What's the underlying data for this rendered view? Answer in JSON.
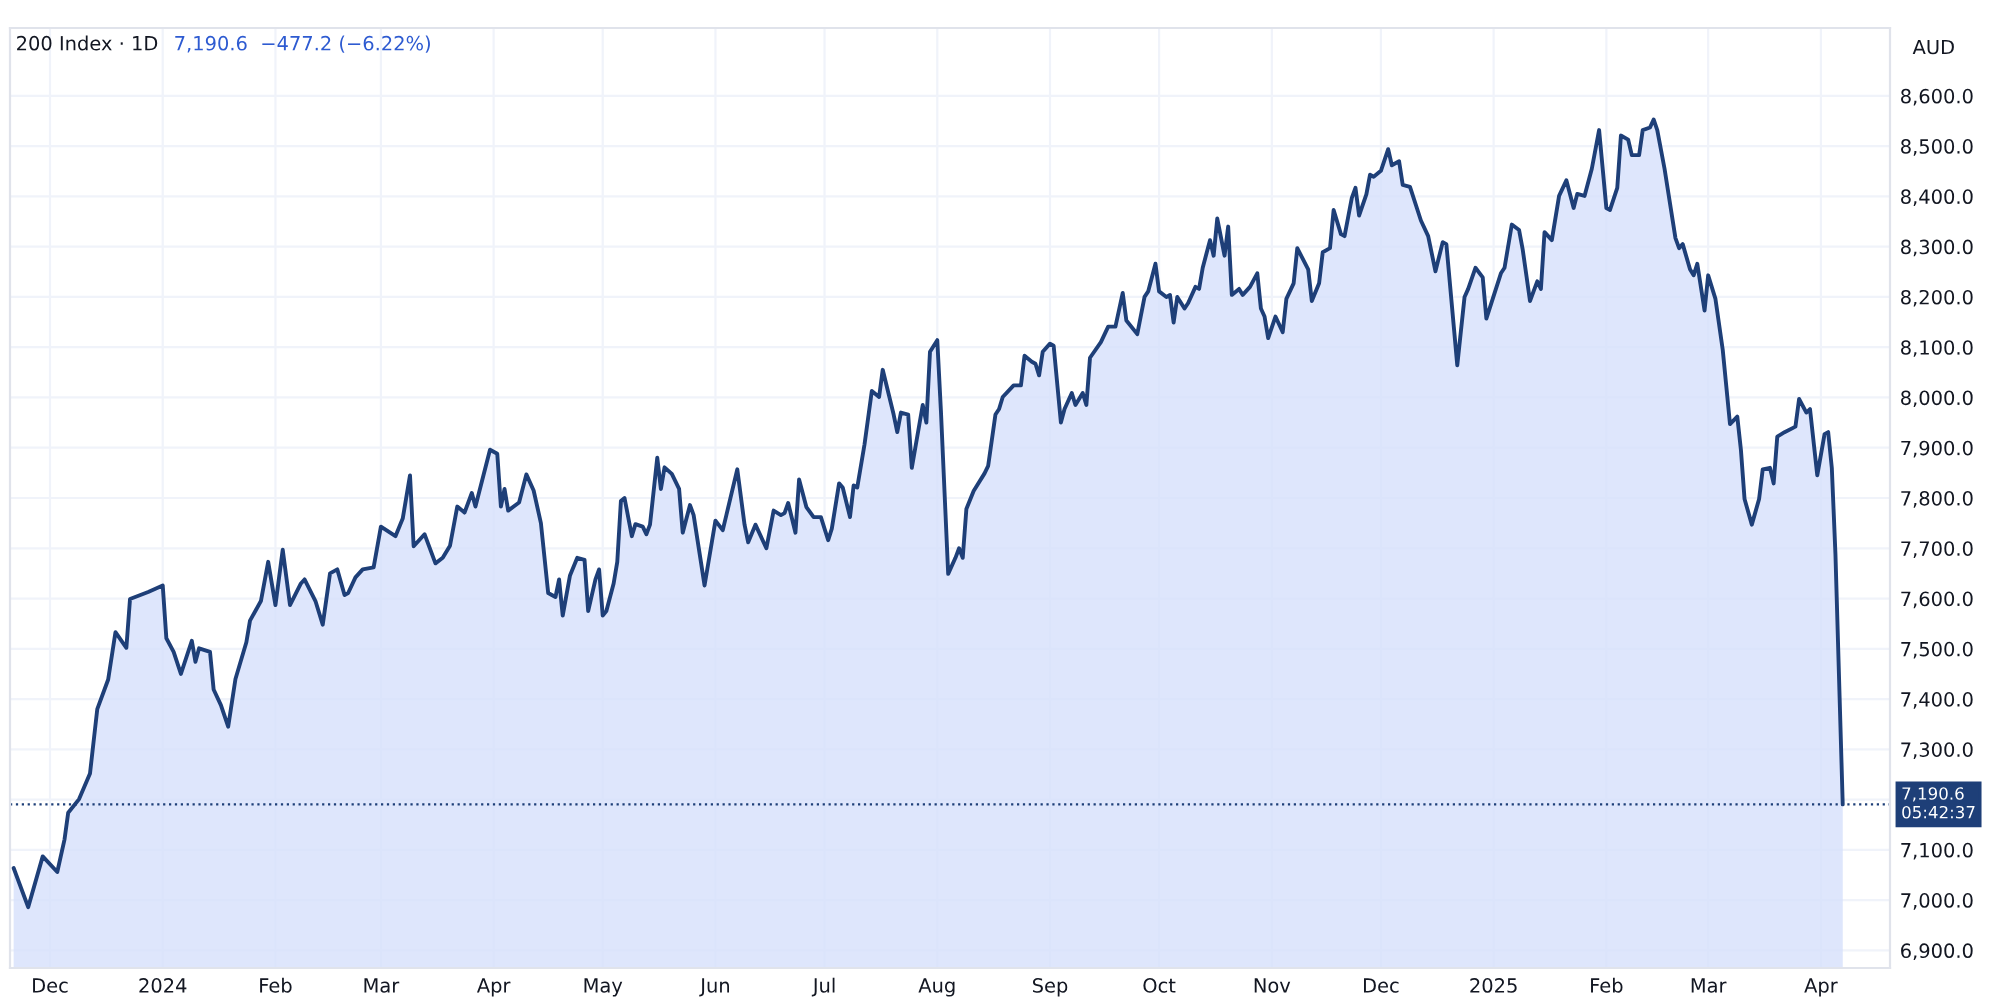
{
  "chart_data": {
    "type": "area",
    "title": "200 Index · 1D",
    "subtitle": "7,190.6  −477.2 (−6.22%)",
    "ylabel": "AUD",
    "series": [
      {
        "color": "#1e3f78",
        "x": [
          "2023-11-21",
          "2023-11-25",
          "2023-11-29",
          "2023-12-03",
          "2023-12-05",
          "2023-12-06",
          "2023-12-09",
          "2023-12-12",
          "2023-12-14",
          "2023-12-17",
          "2023-12-19",
          "2023-12-22",
          "2023-12-23",
          "2023-12-28",
          "2024-01-01",
          "2024-01-02",
          "2024-01-04",
          "2024-01-06",
          "2024-01-09",
          "2024-01-10",
          "2024-01-11",
          "2024-01-14",
          "2024-01-15",
          "2024-01-17",
          "2024-01-19",
          "2024-01-21",
          "2024-01-24",
          "2024-01-25",
          "2024-01-28",
          "2024-01-30",
          "2024-02-01",
          "2024-02-03",
          "2024-02-05",
          "2024-02-08",
          "2024-02-09",
          "2024-02-12",
          "2024-02-14",
          "2024-02-16",
          "2024-02-18",
          "2024-02-20",
          "2024-02-21",
          "2024-02-23",
          "2024-02-25",
          "2024-02-28",
          "2024-03-01",
          "2024-03-05",
          "2024-03-07",
          "2024-03-09",
          "2024-03-10",
          "2024-03-13",
          "2024-03-16",
          "2024-03-18",
          "2024-03-20",
          "2024-03-22",
          "2024-03-24",
          "2024-03-26",
          "2024-03-27",
          "2024-03-31",
          "2024-04-02",
          "2024-04-03",
          "2024-04-04",
          "2024-04-05",
          "2024-04-08",
          "2024-04-10",
          "2024-04-12",
          "2024-04-14",
          "2024-04-16",
          "2024-04-18",
          "2024-04-19",
          "2024-04-20",
          "2024-04-22",
          "2024-04-24",
          "2024-04-26",
          "2024-04-27",
          "2024-04-29",
          "2024-04-30",
          "2024-05-01",
          "2024-05-02",
          "2024-05-04",
          "2024-05-05",
          "2024-05-06",
          "2024-05-07",
          "2024-05-09",
          "2024-05-10",
          "2024-05-12",
          "2024-05-13",
          "2024-05-14",
          "2024-05-16",
          "2024-05-17",
          "2024-05-18",
          "2024-05-20",
          "2024-05-22",
          "2024-05-23",
          "2024-05-25",
          "2024-05-26",
          "2024-05-28",
          "2024-05-29",
          "2024-05-31",
          "2024-06-01",
          "2024-06-03",
          "2024-06-04",
          "2024-06-07",
          "2024-06-09",
          "2024-06-10",
          "2024-06-12",
          "2024-06-15",
          "2024-06-17",
          "2024-06-19",
          "2024-06-20",
          "2024-06-21",
          "2024-06-23",
          "2024-06-24",
          "2024-06-26",
          "2024-06-28",
          "2024-06-30",
          "2024-07-02",
          "2024-07-03",
          "2024-07-05",
          "2024-07-06",
          "2024-07-08",
          "2024-07-09",
          "2024-07-10",
          "2024-07-12",
          "2024-07-14",
          "2024-07-16",
          "2024-07-17",
          "2024-07-20",
          "2024-07-21",
          "2024-07-22",
          "2024-07-24",
          "2024-07-25",
          "2024-07-28",
          "2024-07-29",
          "2024-07-30",
          "2024-08-01",
          "2024-08-02",
          "2024-08-04",
          "2024-08-06",
          "2024-08-07",
          "2024-08-08",
          "2024-08-09",
          "2024-08-11",
          "2024-08-14",
          "2024-08-15",
          "2024-08-17",
          "2024-08-18",
          "2024-08-19",
          "2024-08-22",
          "2024-08-24",
          "2024-08-25",
          "2024-08-27",
          "2024-08-28",
          "2024-08-29",
          "2024-08-30",
          "2024-09-01",
          "2024-09-02",
          "2024-09-04",
          "2024-09-05",
          "2024-09-07",
          "2024-09-08",
          "2024-09-10",
          "2024-09-11",
          "2024-09-12",
          "2024-09-15",
          "2024-09-17",
          "2024-09-19",
          "2024-09-21",
          "2024-09-22",
          "2024-09-25",
          "2024-09-27",
          "2024-09-28",
          "2024-09-30",
          "2024-10-01",
          "2024-10-03",
          "2024-10-04",
          "2024-10-05",
          "2024-10-06",
          "2024-10-08",
          "2024-10-09",
          "2024-10-11",
          "2024-10-12",
          "2024-10-13",
          "2024-10-15",
          "2024-10-16",
          "2024-10-17",
          "2024-10-19",
          "2024-10-20",
          "2024-10-21",
          "2024-10-23",
          "2024-10-24",
          "2024-10-26",
          "2024-10-28",
          "2024-10-29",
          "2024-10-30",
          "2024-10-31",
          "2024-11-02",
          "2024-11-04",
          "2024-11-05",
          "2024-11-07",
          "2024-11-08",
          "2024-11-11",
          "2024-11-12",
          "2024-11-14",
          "2024-11-15",
          "2024-11-17",
          "2024-11-18",
          "2024-11-20",
          "2024-11-21",
          "2024-11-23",
          "2024-11-24",
          "2024-11-25",
          "2024-11-27",
          "2024-11-28",
          "2024-11-29",
          "2024-12-01",
          "2024-12-03",
          "2024-12-04",
          "2024-12-06",
          "2024-12-07",
          "2024-12-09",
          "2024-12-12",
          "2024-12-14",
          "2024-12-16",
          "2024-12-18",
          "2024-12-19",
          "2024-12-22",
          "2024-12-24",
          "2024-12-25",
          "2024-12-27",
          "2024-12-29",
          "2024-12-30",
          "2025-01-03",
          "2025-01-04",
          "2025-01-06",
          "2025-01-08",
          "2025-01-09",
          "2025-01-11",
          "2025-01-13",
          "2025-01-14",
          "2025-01-15",
          "2025-01-17",
          "2025-01-19",
          "2025-01-21",
          "2025-01-23",
          "2025-01-24",
          "2025-01-26",
          "2025-01-28",
          "2025-01-30",
          "2025-02-01",
          "2025-02-02",
          "2025-02-04",
          "2025-02-05",
          "2025-02-07",
          "2025-02-08",
          "2025-02-10",
          "2025-02-11",
          "2025-02-13",
          "2025-02-14",
          "2025-02-15",
          "2025-02-17",
          "2025-02-20",
          "2025-02-21",
          "2025-02-22",
          "2025-02-24",
          "2025-02-25",
          "2025-02-26",
          "2025-02-28",
          "2025-03-01",
          "2025-03-03",
          "2025-03-05",
          "2025-03-07",
          "2025-03-09",
          "2025-03-10",
          "2025-03-11",
          "2025-03-13",
          "2025-03-15",
          "2025-03-16",
          "2025-03-18",
          "2025-03-19",
          "2025-03-20",
          "2025-03-22",
          "2025-03-25",
          "2025-03-26",
          "2025-03-28",
          "2025-03-29",
          "2025-03-31",
          "2025-04-02",
          "2025-04-03",
          "2025-04-04",
          "2025-04-05",
          "2025-04-07"
        ],
        "values": [
          7064,
          6986,
          7087,
          7056,
          7121,
          7174,
          7201,
          7252,
          7380,
          7439,
          7533,
          7502,
          7599,
          7613,
          7626,
          7521,
          7494,
          7450,
          7516,
          7474,
          7501,
          7494,
          7419,
          7388,
          7345,
          7440,
          7513,
          7556,
          7595,
          7673,
          7587,
          7697,
          7587,
          7630,
          7638,
          7595,
          7548,
          7650,
          7658,
          7607,
          7611,
          7642,
          7658,
          7662,
          7743,
          7724,
          7759,
          7845,
          7704,
          7728,
          7670,
          7681,
          7705,
          7783,
          7771,
          7810,
          7783,
          7896,
          7888,
          7783,
          7818,
          7775,
          7791,
          7847,
          7815,
          7750,
          7611,
          7603,
          7638,
          7566,
          7646,
          7681,
          7677,
          7575,
          7638,
          7658,
          7566,
          7575,
          7630,
          7673,
          7794,
          7800,
          7724,
          7748,
          7743,
          7728,
          7747,
          7880,
          7818,
          7861,
          7848,
          7818,
          7731,
          7786,
          7766,
          7673,
          7626,
          7712,
          7755,
          7736,
          7766,
          7857,
          7747,
          7712,
          7747,
          7700,
          7775,
          7766,
          7770,
          7790,
          7731,
          7837,
          7782,
          7762,
          7762,
          7716,
          7739,
          7829,
          7821,
          7762,
          7825,
          7821,
          7907,
          8013,
          8001,
          8055,
          7966,
          7931,
          7970,
          7966,
          7860,
          7985,
          7950,
          8091,
          8114,
          7974,
          7649,
          7681,
          7700,
          7681,
          7778,
          7814,
          7849,
          7864,
          7966,
          7977,
          8001,
          8024,
          8024,
          8083,
          8071,
          8067,
          8044,
          8091,
          8107,
          8103,
          7950,
          7977,
          8009,
          7985,
          8009,
          7985,
          8079,
          8110,
          8141,
          8141,
          8208,
          8153,
          8126,
          8200,
          8211,
          8266,
          8211,
          8200,
          8204,
          8149,
          8200,
          8177,
          8188,
          8220,
          8216,
          8258,
          8313,
          8282,
          8356,
          8282,
          8340,
          8204,
          8216,
          8204,
          8220,
          8247,
          8177,
          8161,
          8118,
          8161,
          8130,
          8196,
          8227,
          8297,
          8255,
          8192,
          8227,
          8289,
          8297,
          8373,
          8325,
          8321,
          8397,
          8417,
          8362,
          8404,
          8443,
          8439,
          8451,
          8494,
          8462,
          8470,
          8423,
          8419,
          8352,
          8321,
          8251,
          8309,
          8305,
          8064,
          8200,
          8216,
          8258,
          8239,
          8157,
          8247,
          8258,
          8344,
          8333,
          8294,
          8192,
          8231,
          8216,
          8329,
          8313,
          8401,
          8432,
          8377,
          8405,
          8401,
          8455,
          8532,
          8377,
          8373,
          8417,
          8521,
          8513,
          8482,
          8482,
          8532,
          8537,
          8553,
          8532,
          8455,
          8317,
          8297,
          8305,
          8255,
          8243,
          8266,
          8173,
          8243,
          8196,
          8095,
          7947,
          7962,
          7896,
          7798,
          7747,
          7798,
          7857,
          7860,
          7829,
          7922,
          7931,
          7942,
          7997,
          7970,
          7977,
          7845,
          7927,
          7931,
          7860,
          7688,
          7190.6
        ]
      }
    ],
    "xlim": [
      "2023-11-20",
      "2025-04-20"
    ],
    "xticks": [
      {
        "value": "2023-12-01",
        "label": "Dec"
      },
      {
        "value": "2024-01-01",
        "label": "2024"
      },
      {
        "value": "2024-02-01",
        "label": "Feb"
      },
      {
        "value": "2024-03-01",
        "label": "Mar"
      },
      {
        "value": "2024-04-01",
        "label": "Apr"
      },
      {
        "value": "2024-05-01",
        "label": "May"
      },
      {
        "value": "2024-06-01",
        "label": "Jun"
      },
      {
        "value": "2024-07-01",
        "label": "Jul"
      },
      {
        "value": "2024-08-01",
        "label": "Aug"
      },
      {
        "value": "2024-09-01",
        "label": "Sep"
      },
      {
        "value": "2024-10-01",
        "label": "Oct"
      },
      {
        "value": "2024-11-01",
        "label": "Nov"
      },
      {
        "value": "2024-12-01",
        "label": "Dec"
      },
      {
        "value": "2025-01-01",
        "label": "2025"
      },
      {
        "value": "2025-02-01",
        "label": "Feb"
      },
      {
        "value": "2025-03-01",
        "label": "Mar"
      },
      {
        "value": "2025-04-01",
        "label": "Apr"
      }
    ],
    "ylim": [
      6865,
      8735
    ],
    "yticks": [
      {
        "value": 6900,
        "label": "6,900.0"
      },
      {
        "value": 7000,
        "label": "7,000.0"
      },
      {
        "value": 7100,
        "label": "7,100.0"
      },
      {
        "value": 7200,
        "label": null
      },
      {
        "value": 7300,
        "label": "7,300.0"
      },
      {
        "value": 7400,
        "label": "7,400.0"
      },
      {
        "value": 7500,
        "label": "7,500.0"
      },
      {
        "value": 7600,
        "label": "7,600.0"
      },
      {
        "value": 7700,
        "label": "7,700.0"
      },
      {
        "value": 7800,
        "label": "7,800.0"
      },
      {
        "value": 7900,
        "label": "7,900.0"
      },
      {
        "value": 8000,
        "label": "8,000.0"
      },
      {
        "value": 8100,
        "label": "8,100.0"
      },
      {
        "value": 8200,
        "label": "8,200.0"
      },
      {
        "value": 8300,
        "label": "8,300.0"
      },
      {
        "value": 8400,
        "label": "8,400.0"
      },
      {
        "value": 8500,
        "label": "8,500.0"
      },
      {
        "value": 8600,
        "label": "8,600.0"
      }
    ],
    "ref_lines": [
      {
        "axis": "y",
        "value": 7190.6,
        "label": "7,190.6\n05:42:37",
        "color": "#1e3f78",
        "line_style": "dotted"
      }
    ],
    "grid": true,
    "legend": false,
    "marker": "none",
    "line_style": "solid"
  }
}
